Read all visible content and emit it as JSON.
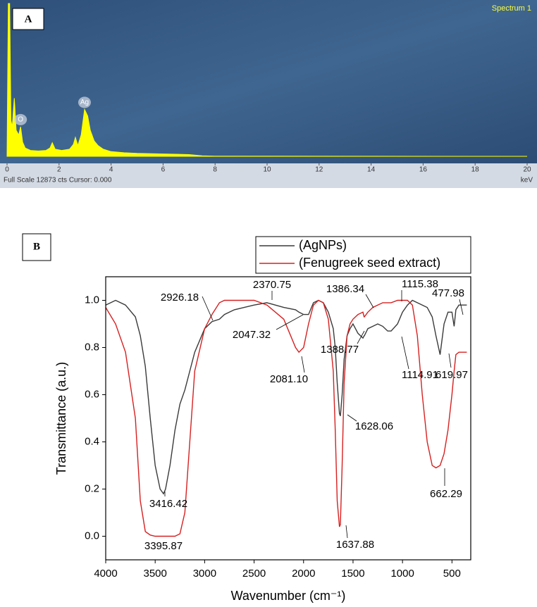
{
  "chart_data": [
    {
      "type": "area",
      "panel_label": "A",
      "title": "Spectrum 1",
      "status_text": "Full Scale 12873 cts Cursor: 0.000",
      "x_label": "keV",
      "x": [
        0,
        0.05,
        0.1,
        0.15,
        0.2,
        0.28,
        0.35,
        0.45,
        0.52,
        0.6,
        0.7,
        0.9,
        1.2,
        1.5,
        1.65,
        1.74,
        1.85,
        2.1,
        2.4,
        2.55,
        2.63,
        2.72,
        2.85,
        2.98,
        3.1,
        3.2,
        3.35,
        3.5,
        3.7,
        4.0,
        4.5,
        5,
        6,
        7,
        7.5,
        8,
        10,
        14,
        20
      ],
      "values": [
        0,
        12873,
        12873,
        3000,
        2500,
        4900,
        2200,
        1800,
        2500,
        1200,
        700,
        500,
        450,
        500,
        700,
        1150,
        600,
        500,
        600,
        1000,
        1600,
        900,
        1800,
        3950,
        3400,
        2200,
        1300,
        900,
        600,
        400,
        300,
        250,
        200,
        150,
        50,
        20,
        10,
        5,
        0
      ],
      "color": "#ffff00",
      "xlim": [
        0,
        20
      ],
      "xticks": [
        0,
        2,
        4,
        6,
        8,
        10,
        12,
        14,
        16,
        18,
        20
      ],
      "ylim": [
        0,
        12873
      ],
      "annotations": [
        {
          "text": "O",
          "x": 0.52
        },
        {
          "text": "Ag",
          "x": 2.98
        }
      ]
    },
    {
      "type": "line",
      "panel_label": "B",
      "x_label": "Wavenumber (cm⁻¹)",
      "y_label": "Transmittance (a.u.)",
      "x": [
        4000,
        3900,
        3800,
        3700,
        3650,
        3600,
        3550,
        3500,
        3450,
        3416,
        3395,
        3350,
        3300,
        3250,
        3200,
        3150,
        3100,
        3000,
        2926,
        2850,
        2800,
        2700,
        2600,
        2500,
        2370,
        2200,
        2081,
        2047,
        2000,
        1950,
        1900,
        1850,
        1800,
        1750,
        1700,
        1680,
        1660,
        1637,
        1628,
        1610,
        1590,
        1560,
        1530,
        1500,
        1450,
        1400,
        1388,
        1386,
        1350,
        1300,
        1250,
        1200,
        1150,
        1115,
        1050,
        1000,
        950,
        900,
        850,
        800,
        750,
        700,
        662,
        620,
        580,
        540,
        500,
        478,
        460,
        430,
        400,
        350
      ],
      "series": [
        {
          "name": "(AgNPs)",
          "color": "#3a3a3a",
          "values": [
            0.98,
            1.0,
            0.98,
            0.93,
            0.85,
            0.72,
            0.5,
            0.3,
            0.2,
            0.18,
            0.2,
            0.3,
            0.45,
            0.56,
            0.62,
            0.7,
            0.78,
            0.88,
            0.91,
            0.92,
            0.94,
            0.96,
            0.97,
            0.98,
            0.99,
            0.97,
            0.96,
            0.95,
            0.94,
            0.94,
            0.99,
            1.0,
            0.99,
            0.95,
            0.88,
            0.8,
            0.65,
            0.52,
            0.51,
            0.6,
            0.75,
            0.85,
            0.88,
            0.9,
            0.86,
            0.84,
            0.85,
            0.85,
            0.88,
            0.89,
            0.9,
            0.89,
            0.87,
            0.87,
            0.9,
            0.95,
            0.98,
            1.0,
            0.99,
            0.98,
            0.97,
            0.93,
            0.85,
            0.77,
            0.9,
            0.95,
            0.95,
            0.89,
            0.96,
            0.98,
            0.98,
            0.98
          ]
        },
        {
          "name": "(Fenugreek seed extract)",
          "color": "#d62020",
          "values": [
            0.97,
            0.9,
            0.78,
            0.5,
            0.15,
            0.02,
            0.005,
            0.0,
            0.0,
            0.0,
            0.0,
            0.0,
            0.0,
            0.01,
            0.1,
            0.4,
            0.7,
            0.88,
            0.94,
            0.99,
            1.0,
            1.0,
            1.0,
            1.0,
            0.98,
            0.92,
            0.8,
            0.78,
            0.8,
            0.9,
            0.98,
            1.0,
            0.99,
            0.92,
            0.7,
            0.45,
            0.15,
            0.04,
            0.05,
            0.3,
            0.65,
            0.85,
            0.9,
            0.92,
            0.94,
            0.95,
            0.93,
            0.93,
            0.95,
            0.97,
            0.98,
            0.99,
            0.99,
            0.99,
            1.0,
            1.0,
            1.0,
            0.98,
            0.85,
            0.6,
            0.4,
            0.3,
            0.29,
            0.3,
            0.35,
            0.45,
            0.6,
            0.7,
            0.77,
            0.78,
            0.78,
            0.78
          ]
        }
      ],
      "xlim": [
        4000,
        310
      ],
      "xticks": [
        4000,
        3500,
        3000,
        2500,
        2000,
        1500,
        1000,
        500
      ],
      "ylim": [
        -0.1,
        1.1
      ],
      "yticks": [
        {
          "value": 0,
          "label": "0.0"
        },
        0.2,
        0.4,
        0.6,
        0.8,
        {
          "value": 1,
          "label": "1.0"
        }
      ],
      "legend": "top",
      "annotations": [
        {
          "text": "2926.18"
        },
        {
          "text": "2370.75"
        },
        {
          "text": "1386.34"
        },
        {
          "text": "1115.38"
        },
        {
          "text": "477.98"
        },
        {
          "text": "2047.32"
        },
        {
          "text": "1388.77"
        },
        {
          "text": "2081.10"
        },
        {
          "text": "1114.91"
        },
        {
          "text": "619.97"
        },
        {
          "text": "1628.06"
        },
        {
          "text": "3416.42"
        },
        {
          "text": "662.29"
        },
        {
          "text": "3395.87"
        },
        {
          "text": "1637.88"
        }
      ]
    }
  ]
}
